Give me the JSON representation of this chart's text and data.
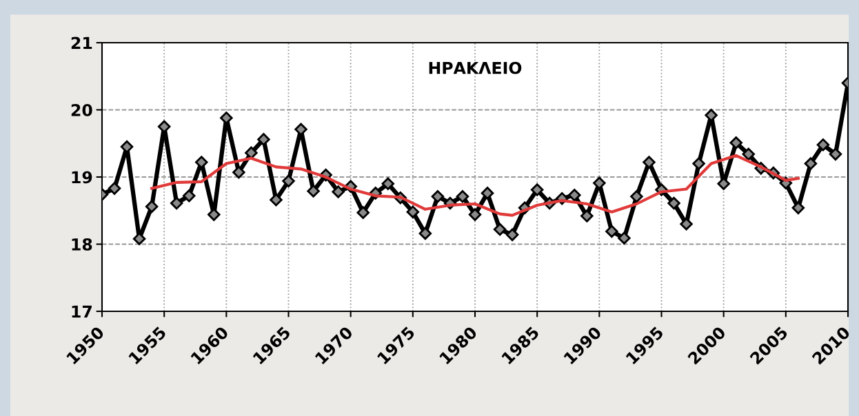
{
  "chart_data": {
    "type": "line",
    "title": "ΗΡΑΚΛΕΙΟ",
    "xlim": [
      1950,
      2010
    ],
    "xticks": [
      1950,
      1955,
      1960,
      1965,
      1970,
      1975,
      1980,
      1985,
      1990,
      1995,
      2000,
      2005,
      2010
    ],
    "ylim": [
      17,
      21
    ],
    "yticks": [
      17,
      18,
      19,
      20,
      21
    ],
    "grid": true,
    "legend": false,
    "series": [
      {
        "color": "#000000",
        "marker": "diamond",
        "x": [
          1950,
          1951,
          1952,
          1953,
          1954,
          1955,
          1956,
          1957,
          1958,
          1959,
          1960,
          1961,
          1962,
          1963,
          1964,
          1965,
          1966,
          1967,
          1968,
          1969,
          1970,
          1971,
          1972,
          1973,
          1974,
          1975,
          1976,
          1977,
          1978,
          1979,
          1980,
          1981,
          1982,
          1983,
          1984,
          1985,
          1986,
          1987,
          1988,
          1989,
          1990,
          1991,
          1992,
          1993,
          1994,
          1995,
          1996,
          1997,
          1998,
          1999,
          2000,
          2001,
          2002,
          2003,
          2004,
          2005,
          2006,
          2007,
          2008,
          2009,
          2010
        ],
        "values": [
          18.74,
          18.83,
          19.45,
          18.08,
          18.56,
          19.75,
          18.61,
          18.72,
          19.22,
          18.44,
          19.88,
          19.07,
          19.36,
          19.56,
          18.66,
          18.94,
          19.71,
          18.79,
          19.03,
          18.78,
          18.86,
          18.47,
          18.76,
          18.9,
          18.69,
          18.48,
          18.16,
          18.71,
          18.61,
          18.71,
          18.44,
          18.76,
          18.22,
          18.14,
          18.54,
          18.81,
          18.61,
          18.68,
          18.73,
          18.42,
          18.91,
          18.19,
          18.09,
          18.71,
          19.22,
          18.81,
          18.61,
          18.3,
          19.2,
          19.92,
          18.9,
          19.51,
          19.34,
          19.13,
          19.06,
          18.91,
          18.54,
          19.2,
          19.48,
          19.34,
          20.4
        ]
      },
      {
        "color": "#e03a3a",
        "marker": "none",
        "x": [
          1954,
          1956,
          1958,
          1960,
          1962,
          1964,
          1966,
          1968,
          1970,
          1972,
          1974,
          1976,
          1978,
          1980,
          1982,
          1983,
          1985,
          1987,
          1989,
          1991,
          1993,
          1995,
          1997,
          1999,
          2001,
          2003,
          2005,
          2006
        ],
        "values": [
          18.83,
          18.92,
          18.93,
          19.2,
          19.28,
          19.15,
          19.12,
          19.0,
          18.82,
          18.72,
          18.7,
          18.52,
          18.58,
          18.6,
          18.45,
          18.43,
          18.58,
          18.65,
          18.6,
          18.48,
          18.6,
          18.78,
          18.82,
          19.2,
          19.32,
          19.15,
          18.95,
          18.98
        ]
      }
    ]
  }
}
